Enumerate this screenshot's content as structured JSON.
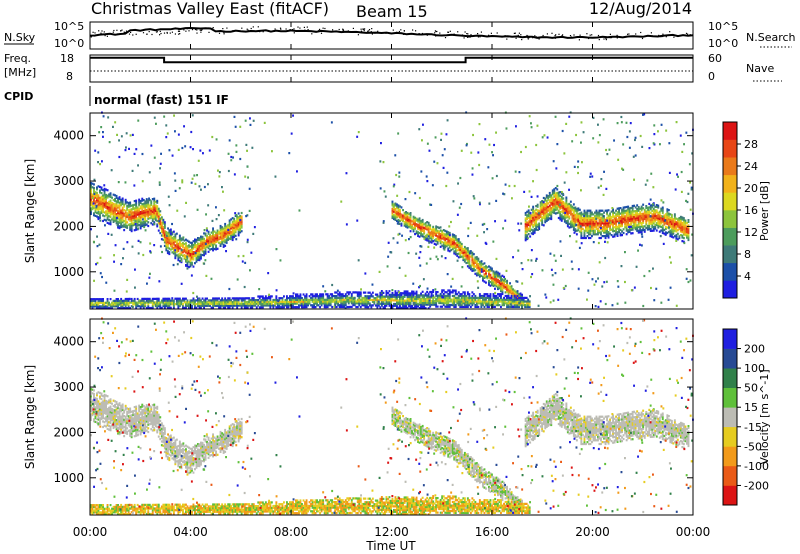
{
  "header": {
    "station": "Christmas Valley East (fitACF)",
    "beam": "Beam 15",
    "date": "12/Aug/2014"
  },
  "top_panels": {
    "nsky_label": "N.Sky",
    "nsearch_label": "N.Search",
    "nsky_ticks": [
      "10^5",
      "10^0"
    ],
    "nsearch_ticks": [
      "10^5",
      "10^0"
    ],
    "freq_label_1": "Freq.",
    "freq_label_2": "[MHz]",
    "freq_ticks": [
      "18",
      "8"
    ],
    "nave_label": "Nave",
    "nave_ticks": [
      "60",
      "0"
    ],
    "cpid_label": "CPID",
    "cpid_value": "normal (fast) 151 IF"
  },
  "colors": {
    "power": [
      "#1f1fe0",
      "#1c50a8",
      "#3e7a78",
      "#4c9c5c",
      "#8cc43c",
      "#dcd820",
      "#f2b21a",
      "#ea7a1a",
      "#e84616",
      "#dc1414"
    ],
    "velocity": [
      "#1f1fe0",
      "#274a94",
      "#30804a",
      "#5fc03a",
      "#bcbcb4",
      "#e6cc20",
      "#f29a1a",
      "#ea5a16",
      "#dc1414"
    ]
  },
  "chart_data": [
    {
      "type": "heatmap",
      "title": "Power",
      "ylabel": "Slant Range [km]",
      "xlabel": "",
      "colorbar_label": "Power [dB]",
      "colorbar_ticks": [
        "4",
        "8",
        "12",
        "16",
        "20",
        "24",
        "28"
      ],
      "y_ticks": [
        "1000",
        "2000",
        "3000",
        "4000"
      ],
      "x_ticks": [
        "00:00",
        "04:00",
        "08:00",
        "12:00",
        "16:00",
        "20:00",
        "00:00"
      ],
      "xlim": [
        0,
        24
      ],
      "ylim": [
        180,
        4500
      ],
      "echo_bands": [
        {
          "t": [
            0.0,
            1.5,
            2.6,
            3.0,
            4.0,
            4.6,
            5.3,
            6.0
          ],
          "center": [
            2600,
            2200,
            2350,
            1700,
            1350,
            1650,
            1800,
            2100
          ],
          "width": [
            380,
            340,
            300,
            280,
            300,
            240,
            260,
            260
          ]
        },
        {
          "t": [
            12.0,
            13.0,
            14.5,
            15.5,
            16.5,
            17.2
          ],
          "center": [
            2350,
            2000,
            1600,
            1050,
            650,
            300
          ],
          "width": [
            220,
            220,
            220,
            220,
            200,
            160
          ]
        },
        {
          "t": [
            17.3,
            18.5,
            19.5,
            20.5,
            21.5,
            22.5,
            23.8
          ],
          "center": [
            2000,
            2550,
            2050,
            2050,
            2150,
            2200,
            1900
          ],
          "width": [
            320,
            320,
            320,
            320,
            320,
            300,
            300
          ]
        },
        {
          "t": [
            0.0,
            6.5,
            10.5,
            14.5,
            17.5
          ],
          "center": [
            280,
            300,
            360,
            360,
            280
          ],
          "width": [
            140,
            140,
            190,
            230,
            150
          ]
        }
      ]
    },
    {
      "type": "heatmap",
      "title": "Velocity",
      "ylabel": "Slant Range [km]",
      "xlabel": "Time UT",
      "colorbar_label": "Velocity [m s^-1]",
      "colorbar_ticks": [
        "200",
        "100",
        "50",
        "15",
        "-15",
        "-50",
        "-100",
        "-200"
      ],
      "y_ticks": [
        "1000",
        "2000",
        "3000",
        "4000"
      ],
      "x_ticks": [
        "00:00",
        "04:00",
        "08:00",
        "12:00",
        "16:00",
        "20:00",
        "00:00"
      ],
      "xlim": [
        0,
        24
      ],
      "ylim": [
        180,
        4500
      ]
    },
    {
      "type": "line",
      "title": "Frequency",
      "ylabel": "Freq. [MHz]",
      "ylim": [
        8,
        18
      ],
      "x": [
        0.0,
        2.95,
        2.95,
        14.95,
        14.95,
        24.0
      ],
      "values": [
        17.0,
        17.0,
        15.3,
        15.3,
        17.0,
        17.0
      ]
    }
  ]
}
